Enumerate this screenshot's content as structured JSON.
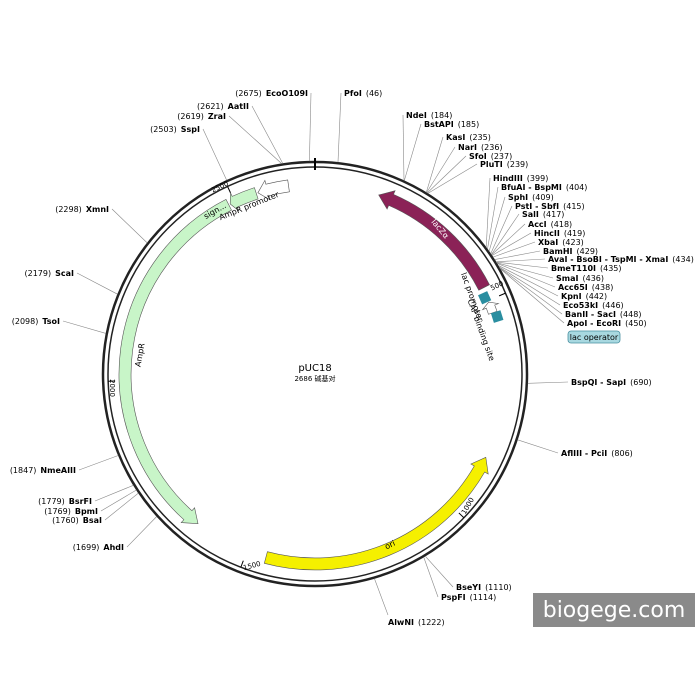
{
  "title": "pUC18",
  "size": "2686 碱基对",
  "features": [
    {
      "label": "lacZα"
    },
    {
      "label": "lac promoter"
    },
    {
      "label": "CAP binding site"
    },
    {
      "label": "lac operator"
    },
    {
      "label": "AmpR"
    },
    {
      "label": "sign..."
    },
    {
      "label": "AmpR promoter"
    },
    {
      "label": "ori"
    }
  ],
  "ticks": [
    "500",
    "1000",
    "1500",
    "2000",
    "2500"
  ],
  "sites": [
    {
      "name": "EcoO109I",
      "pos": "(2675)"
    },
    {
      "name": "AatII",
      "pos": "(2621)"
    },
    {
      "name": "ZraI",
      "pos": "(2619)"
    },
    {
      "name": "SspI",
      "pos": "(2503)"
    },
    {
      "name": "XmnI",
      "pos": "(2298)"
    },
    {
      "name": "ScaI",
      "pos": "(2179)"
    },
    {
      "name": "TsoI",
      "pos": "(2098)"
    },
    {
      "name": "NmeAIII",
      "pos": "(1847)"
    },
    {
      "name": "BsrFI",
      "pos": "(1779)"
    },
    {
      "name": "BpmI",
      "pos": "(1769)"
    },
    {
      "name": "BsaI",
      "pos": "(1760)"
    },
    {
      "name": "AhdI",
      "pos": "(1699)"
    },
    {
      "name": "AlwNI",
      "pos": "(1222)"
    },
    {
      "name": "BseYI",
      "pos": "(1110)"
    },
    {
      "name": "PspFI",
      "pos": "(1114)"
    },
    {
      "name": "PfoI",
      "pos": "(46)"
    },
    {
      "name": "NdeI",
      "pos": "(184)"
    },
    {
      "name": "BstAPI",
      "pos": "(185)"
    },
    {
      "name": "KasI",
      "pos": "(235)"
    },
    {
      "name": "NarI",
      "pos": "(236)"
    },
    {
      "name": "SfoI",
      "pos": "(237)"
    },
    {
      "name": "PluTI",
      "pos": "(239)"
    },
    {
      "name": "HindIII",
      "pos": "(399)"
    },
    {
      "name": "BfuAI - BspMI",
      "pos": "(404)"
    },
    {
      "name": "SphI",
      "pos": "(409)"
    },
    {
      "name": "PstI - SbfI",
      "pos": "(415)"
    },
    {
      "name": "SalI",
      "pos": "(417)"
    },
    {
      "name": "AccI",
      "pos": "(418)"
    },
    {
      "name": "HincII",
      "pos": "(419)"
    },
    {
      "name": "XbaI",
      "pos": "(423)"
    },
    {
      "name": "BamHI",
      "pos": "(429)"
    },
    {
      "name": "AvaI - BsoBI - TspMI - XmaI",
      "pos": "(434)"
    },
    {
      "name": "BmeT110I",
      "pos": "(435)"
    },
    {
      "name": "SmaI",
      "pos": "(436)"
    },
    {
      "name": "Acc65I",
      "pos": "(438)"
    },
    {
      "name": "KpnI",
      "pos": "(442)"
    },
    {
      "name": "Eco53kI",
      "pos": "(446)"
    },
    {
      "name": "BanII - SacI",
      "pos": "(448)"
    },
    {
      "name": "ApoI - EcoRI",
      "pos": "(450)"
    },
    {
      "name": "BspQI - SapI",
      "pos": "(690)"
    },
    {
      "name": "AflIII - PciI",
      "pos": "(806)"
    }
  ],
  "watermark": "biogege.com"
}
